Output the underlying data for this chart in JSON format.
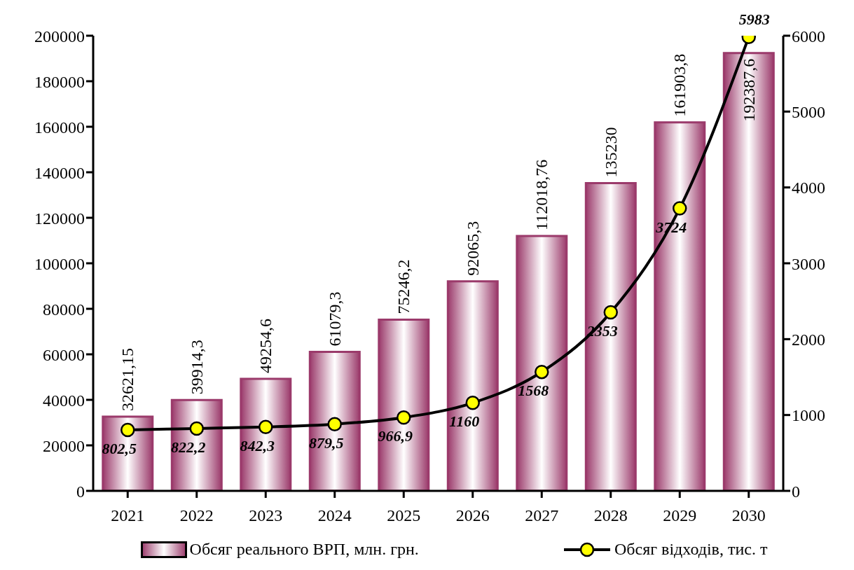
{
  "chart_data": {
    "type": "bar",
    "categories": [
      "2021",
      "2022",
      "2023",
      "2024",
      "2025",
      "2026",
      "2027",
      "2028",
      "2029",
      "2030"
    ],
    "series": [
      {
        "name": "Обсяг реального ВРП, млн. грн.",
        "color": "#9b3a6b",
        "values": [
          32621.15,
          39914.3,
          49254.6,
          61079.3,
          75246.2,
          92065.3,
          112018.76,
          135230,
          161903.8,
          192387.6
        ],
        "value_labels": [
          "32621,15",
          "39914,3",
          "49254,6",
          "61079,3",
          "75246,2",
          "92065,3",
          "112018,76",
          "135230",
          "161903,8",
          "192387,6"
        ]
      },
      {
        "name": "Обсяг відходів, тис. т",
        "type": "line",
        "axis": "y2",
        "color": "#000000",
        "marker": "circle",
        "values": [
          802.5,
          822.2,
          842.3,
          879.5,
          966.9,
          1160,
          1568,
          2353,
          3724,
          5983
        ],
        "value_labels": [
          "802,5",
          "822,2",
          "842,3",
          "879,5",
          "966,9",
          "1160",
          "1568",
          "2353",
          "3724",
          "5983"
        ]
      }
    ],
    "ylim": [
      0,
      200000
    ],
    "yticks": [
      0,
      20000,
      40000,
      60000,
      80000,
      100000,
      120000,
      140000,
      160000,
      180000,
      200000
    ],
    "y2lim": [
      0,
      6000
    ],
    "y2ticks": [
      0,
      1000,
      2000,
      3000,
      4000,
      5000,
      6000
    ],
    "grid": false,
    "legend": "bottom"
  }
}
